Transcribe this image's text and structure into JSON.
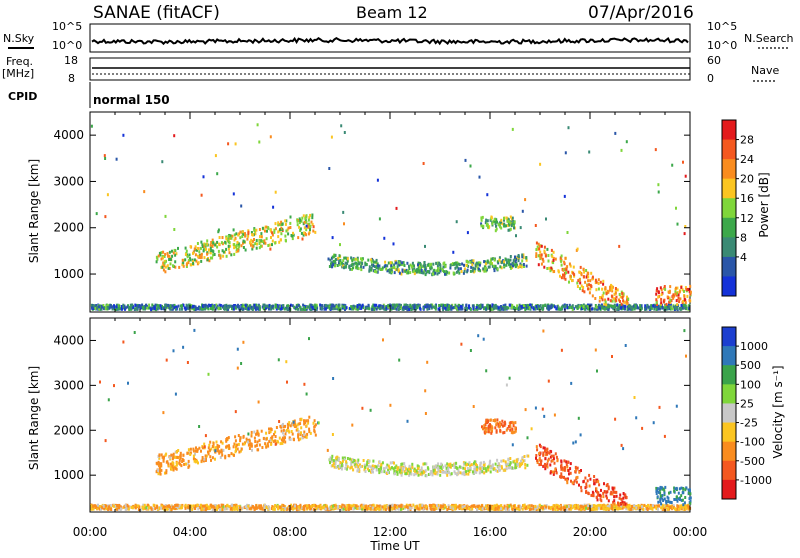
{
  "header": {
    "site": "SANAE (fitACF)",
    "beam": "Beam 12",
    "date": "07/Apr/2016"
  },
  "top_strips": {
    "nsky_label": "N.Sky",
    "nsearch_label": "N.Search",
    "freq_label": "Freq.",
    "freq_unit": "[MHz]",
    "nave_label": "Nave",
    "cpid_label": "CPID",
    "cpid_value": "normal 150",
    "nsky_ticks": [
      "10^5",
      "10^0"
    ],
    "nsearch_ticks": [
      "10^5",
      "10^0"
    ],
    "freq_ticks": [
      "18",
      "8"
    ],
    "nave_ticks": [
      "60",
      "0"
    ]
  },
  "time_axis": {
    "label": "Time UT",
    "ticks": [
      "00:00",
      "04:00",
      "08:00",
      "12:00",
      "16:00",
      "20:00",
      "00:00"
    ]
  },
  "chart_data": [
    {
      "type": "heatmap",
      "panel": "power",
      "ylabel": "Slant Range [km]",
      "ylim": [
        180,
        4500
      ],
      "yticks": [
        1000,
        2000,
        3000,
        4000
      ],
      "xlim_hours": [
        0,
        24
      ],
      "colorbar": {
        "label": "Power [dB]",
        "ticks": [
          "28",
          "24",
          "20",
          "16",
          "12",
          "8",
          "4"
        ],
        "colors": [
          "#e31a1c",
          "#f4581f",
          "#f98c1f",
          "#fbc521",
          "#7fd63a",
          "#3ca84a",
          "#3a8a74",
          "#2a56a8",
          "#1432d8"
        ]
      },
      "features": [
        {
          "name": "ground-scatter-band",
          "t": [
            0,
            24
          ],
          "range": [
            200,
            300
          ],
          "value": 8
        },
        {
          "name": "morning-ramp",
          "t": [
            2.6,
            9.0
          ],
          "range": [
            950,
            2500
          ],
          "value": 18
        },
        {
          "name": "midday-arc",
          "t": [
            9.5,
            17.5
          ],
          "range": [
            1000,
            1600
          ],
          "value": 12
        },
        {
          "name": "evening-band",
          "t": [
            15.6,
            17.0
          ],
          "range": [
            1900,
            2200
          ],
          "value": 14
        },
        {
          "name": "dusk-descent",
          "t": [
            17.8,
            21.5
          ],
          "range": [
            300,
            1700
          ],
          "value": 22
        },
        {
          "name": "night-patch",
          "t": [
            22.6,
            24
          ],
          "range": [
            300,
            700
          ],
          "value": 24
        }
      ]
    },
    {
      "type": "heatmap",
      "panel": "velocity",
      "ylabel": "Slant Range [km]",
      "ylim": [
        180,
        4500
      ],
      "yticks": [
        1000,
        2000,
        3000,
        4000
      ],
      "xlim_hours": [
        0,
        24
      ],
      "colorbar": {
        "label": "Velocity [m s⁻¹]",
        "ticks": [
          "1000",
          "500",
          "100",
          "25",
          "-25",
          "-100",
          "-500",
          "-1000"
        ],
        "colors": [
          "#1c3fd0",
          "#2f78b8",
          "#3aa34a",
          "#7fd63a",
          "#c8c8c8",
          "#fbc521",
          "#f98c1f",
          "#f4581f",
          "#e31a1c"
        ]
      },
      "features": [
        {
          "name": "ground-scatter-band",
          "t": [
            0,
            24
          ],
          "range": [
            200,
            300
          ],
          "value": -50
        },
        {
          "name": "morning-ramp",
          "t": [
            2.6,
            9.0
          ],
          "range": [
            950,
            2500
          ],
          "value": -100
        },
        {
          "name": "midday-arc",
          "t": [
            9.5,
            17.5
          ],
          "range": [
            1000,
            1600
          ],
          "value": 0
        },
        {
          "name": "evening-band",
          "t": [
            15.6,
            17.0
          ],
          "range": [
            1900,
            2200
          ],
          "value": -300
        },
        {
          "name": "dusk-descent",
          "t": [
            17.8,
            21.5
          ],
          "range": [
            300,
            1700
          ],
          "value": -600
        },
        {
          "name": "night-patch",
          "t": [
            22.6,
            24
          ],
          "range": [
            300,
            700
          ],
          "value": 400
        }
      ]
    }
  ]
}
